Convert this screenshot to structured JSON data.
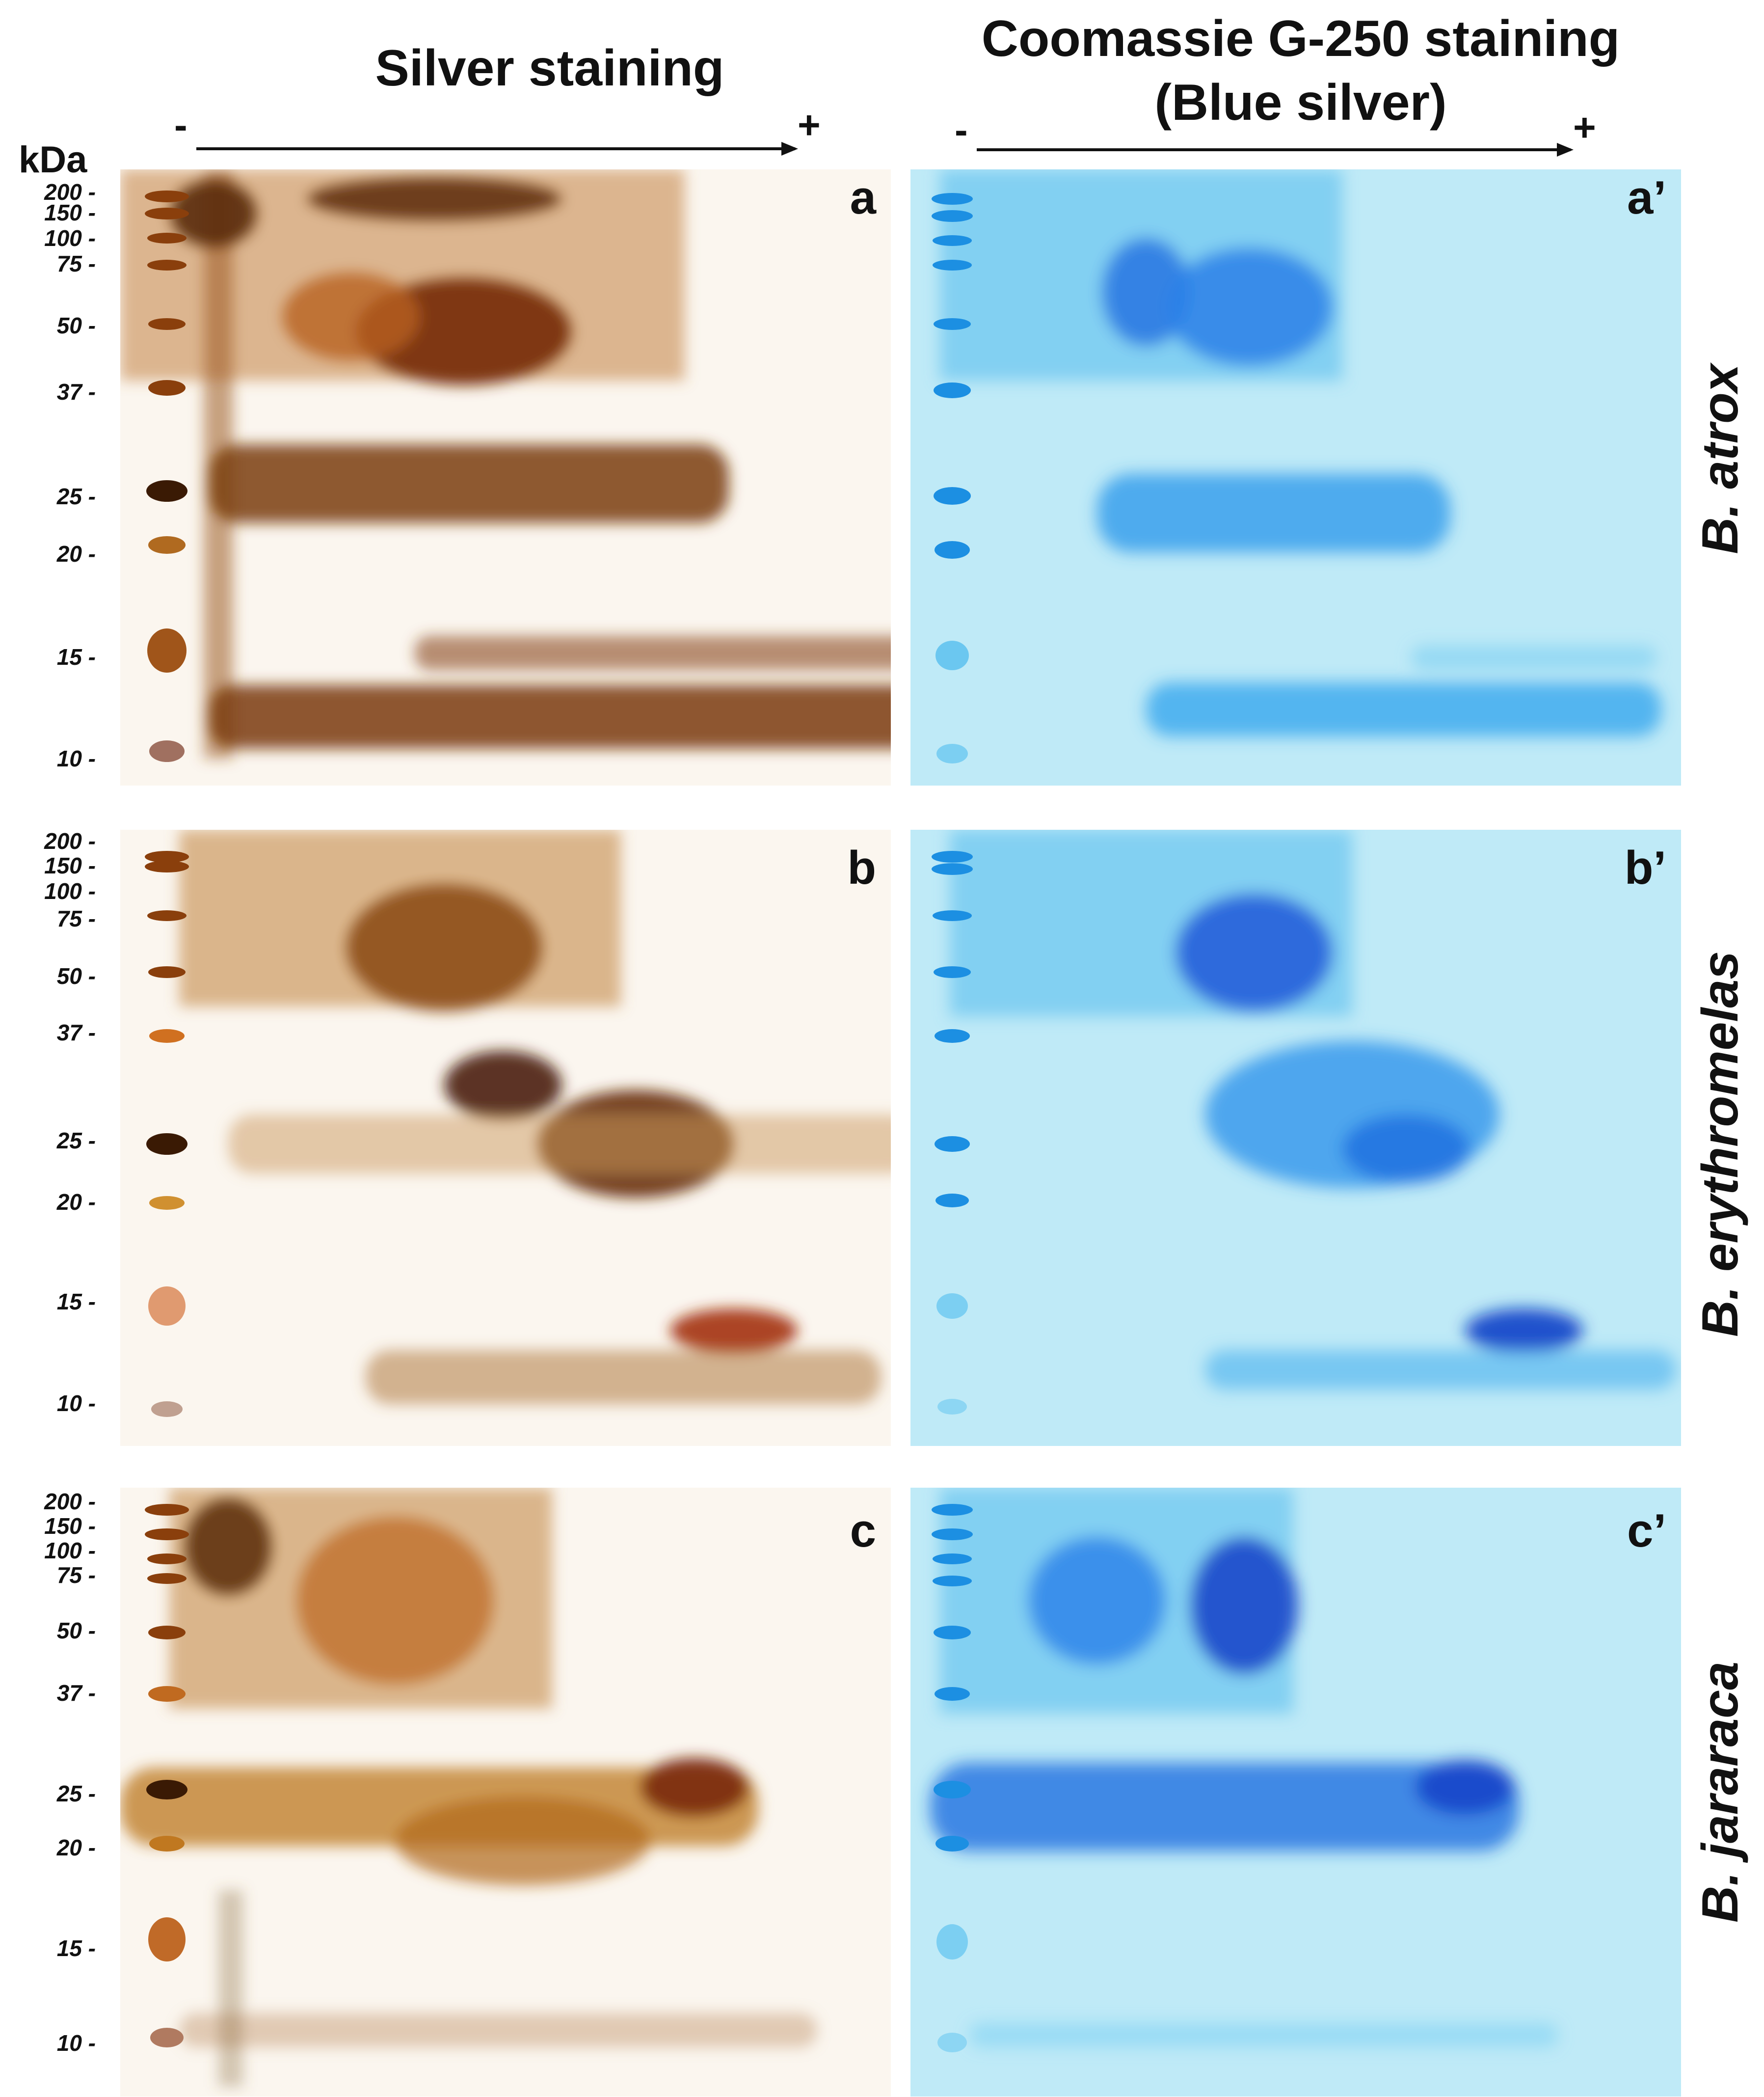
{
  "headers": {
    "silver": "Silver staining",
    "coomassie_line1": "Coomassie G-250 staining",
    "coomassie_line2": "(Blue silver)",
    "minus": "-",
    "plus": "+",
    "kda": "kDa"
  },
  "mw_markers": [
    "200 -",
    "150 -",
    "100 -",
    "75 -",
    "50 -",
    "37 -",
    "25 -",
    "20 -",
    "15 -",
    "10 -"
  ],
  "panels": [
    {
      "row": 0,
      "stain": "silver",
      "label": "a"
    },
    {
      "row": 0,
      "stain": "coomassie",
      "label": "a’"
    },
    {
      "row": 1,
      "stain": "silver",
      "label": "b"
    },
    {
      "row": 1,
      "stain": "coomassie",
      "label": "b’"
    },
    {
      "row": 2,
      "stain": "silver",
      "label": "c"
    },
    {
      "row": 2,
      "stain": "coomassie",
      "label": "c’"
    }
  ],
  "species": [
    "B. atrox",
    "B. erythromelas",
    "B. jararaca"
  ],
  "colors": {
    "silver_bg": "#fbf6ef",
    "silver_spot": "#7a3a0a",
    "silver_spot_light": "#c07a3a",
    "blue_bg": "#bfeaf7",
    "blue_spot": "#1f7fe0",
    "blue_spot_dark": "#1240c8"
  }
}
